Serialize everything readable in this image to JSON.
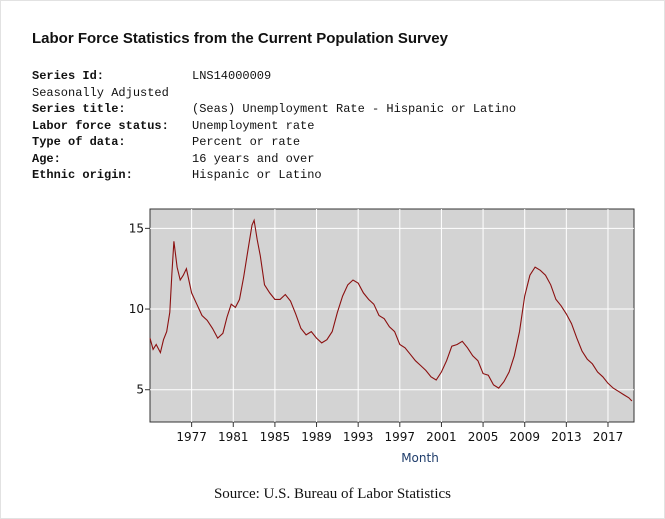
{
  "header": {
    "title": "Labor Force Statistics from the Current Population Survey"
  },
  "meta": {
    "series_id_label": "Series Id:",
    "series_id": "LNS14000009",
    "seasonal": "Seasonally Adjusted",
    "series_title_label": "Series title:",
    "series_title": "(Seas) Unemployment Rate - Hispanic or Latino",
    "lf_status_label": "Labor force status:",
    "lf_status": "Unemployment rate",
    "data_type_label": "Type of data:",
    "data_type": "Percent or rate",
    "age_label": "Age:",
    "age": "16 years and over",
    "ethnic_label": "Ethnic origin:",
    "ethnic": "Hispanic or Latino"
  },
  "source": "Source: U.S. Bureau of Labor Statistics",
  "chart_data": {
    "type": "line",
    "title": "",
    "xlabel": "Month",
    "ylabel": "",
    "xlim": [
      1973.0,
      2019.5
    ],
    "ylim": [
      3.0,
      16.2
    ],
    "x_ticks": [
      1977,
      1981,
      1985,
      1989,
      1993,
      1997,
      2001,
      2005,
      2009,
      2013,
      2017
    ],
    "y_ticks": [
      5,
      10,
      15
    ],
    "grid": true,
    "colors": {
      "line": "#8b1010",
      "plot_bg": "#d3d3d3",
      "grid": "#ffffff"
    },
    "series": [
      {
        "x": [
          1973.0,
          1973.3,
          1973.6,
          1974.0,
          1974.3,
          1974.6,
          1974.9,
          1975.1,
          1975.3,
          1975.6,
          1975.9,
          1976.2,
          1976.5,
          1977.0,
          1977.5,
          1978.0,
          1978.5,
          1979.0,
          1979.5,
          1980.0,
          1980.4,
          1980.8,
          1981.2,
          1981.6,
          1982.0,
          1982.4,
          1982.8,
          1983.0,
          1983.3,
          1983.6,
          1984.0,
          1984.5,
          1985.0,
          1985.5,
          1986.0,
          1986.5,
          1987.0,
          1987.5,
          1988.0,
          1988.5,
          1989.0,
          1989.5,
          1990.0,
          1990.5,
          1991.0,
          1991.5,
          1992.0,
          1992.5,
          1993.0,
          1993.5,
          1994.0,
          1994.5,
          1995.0,
          1995.5,
          1996.0,
          1996.5,
          1997.0,
          1997.5,
          1998.0,
          1998.5,
          1999.0,
          1999.5,
          2000.0,
          2000.5,
          2001.0,
          2001.5,
          2002.0,
          2002.5,
          2003.0,
          2003.5,
          2004.0,
          2004.5,
          2005.0,
          2005.5,
          2006.0,
          2006.5,
          2007.0,
          2007.5,
          2008.0,
          2008.5,
          2009.0,
          2009.5,
          2010.0,
          2010.5,
          2011.0,
          2011.5,
          2012.0,
          2012.5,
          2013.0,
          2013.5,
          2014.0,
          2014.5,
          2015.0,
          2015.5,
          2016.0,
          2016.5,
          2017.0,
          2017.5,
          2018.0,
          2018.5,
          2019.0,
          2019.3
        ],
        "values": [
          8.2,
          7.5,
          7.8,
          7.3,
          8.1,
          8.6,
          9.8,
          12.2,
          14.2,
          12.6,
          11.8,
          12.1,
          12.5,
          11.0,
          10.3,
          9.6,
          9.3,
          8.8,
          8.2,
          8.5,
          9.5,
          10.3,
          10.1,
          10.6,
          12.0,
          13.6,
          15.2,
          15.5,
          14.3,
          13.3,
          11.5,
          11.0,
          10.6,
          10.6,
          10.9,
          10.5,
          9.7,
          8.8,
          8.4,
          8.6,
          8.2,
          7.9,
          8.1,
          8.6,
          9.8,
          10.8,
          11.5,
          11.8,
          11.6,
          11.0,
          10.6,
          10.3,
          9.6,
          9.4,
          8.9,
          8.6,
          7.8,
          7.6,
          7.2,
          6.8,
          6.5,
          6.2,
          5.8,
          5.6,
          6.1,
          6.8,
          7.7,
          7.8,
          8.0,
          7.6,
          7.1,
          6.8,
          6.0,
          5.9,
          5.3,
          5.1,
          5.5,
          6.1,
          7.1,
          8.6,
          10.8,
          12.1,
          12.6,
          12.4,
          12.1,
          11.5,
          10.6,
          10.2,
          9.7,
          9.1,
          8.2,
          7.4,
          6.9,
          6.6,
          6.1,
          5.8,
          5.4,
          5.1,
          4.9,
          4.7,
          4.5,
          4.3
        ]
      }
    ]
  }
}
